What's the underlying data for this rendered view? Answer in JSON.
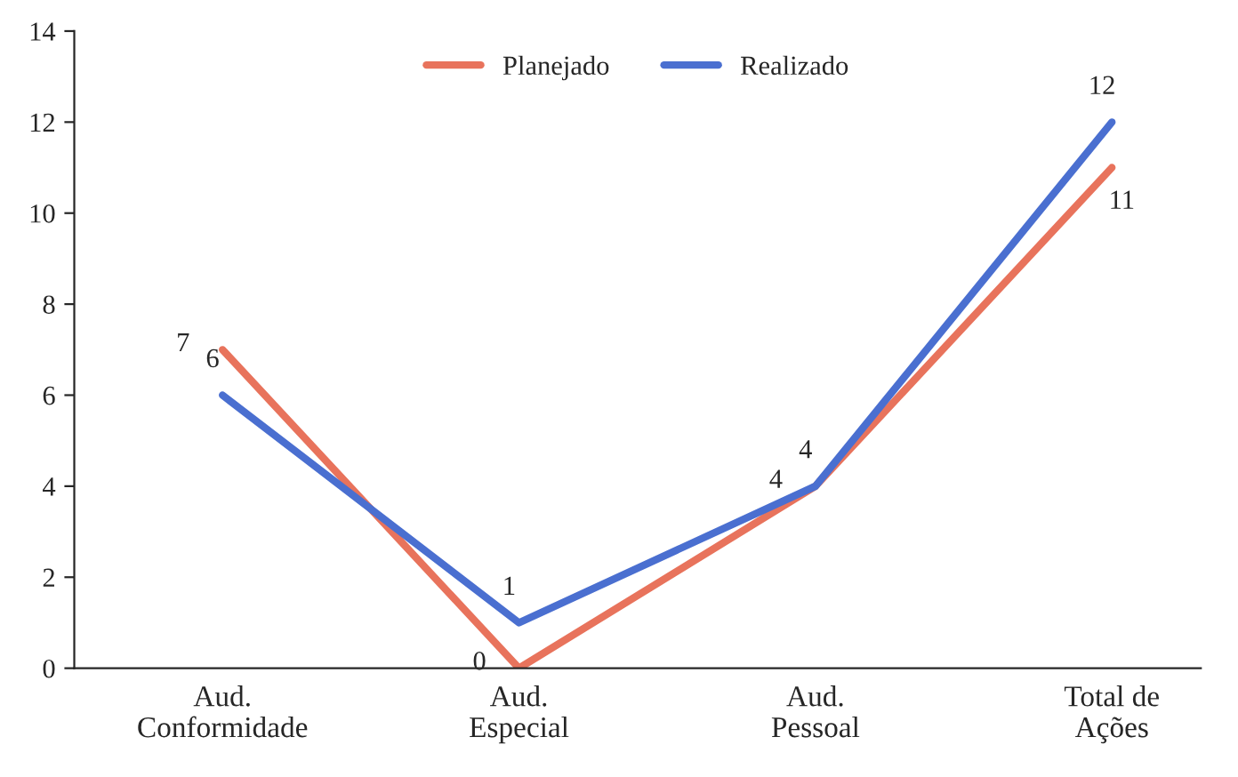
{
  "chart_data": {
    "type": "line",
    "categories": [
      "Aud.\nConformidade",
      "Aud.\nEspecial",
      "Aud.\nPessoal",
      "Total de\nAções"
    ],
    "series": [
      {
        "name": "Planejado",
        "color": "#e8735c",
        "values": [
          7,
          0,
          4,
          11
        ]
      },
      {
        "name": "Realizado",
        "color": "#4a6fd0",
        "values": [
          6,
          1,
          4,
          12
        ]
      }
    ],
    "ylim": [
      0,
      14
    ],
    "yticks": [
      0,
      2,
      4,
      6,
      8,
      10,
      12,
      14
    ],
    "data_labels": true,
    "legend": "top",
    "grid": false,
    "marker": "none",
    "line_style": "solid"
  }
}
